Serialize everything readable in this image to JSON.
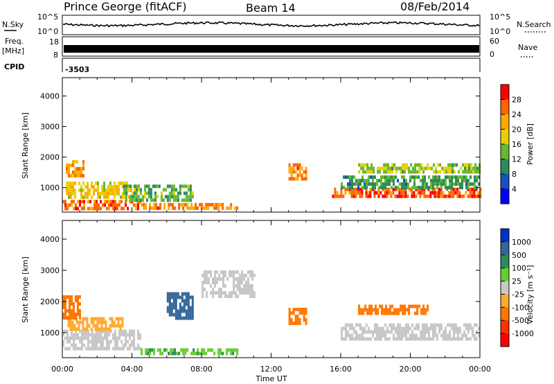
{
  "header": {
    "station": "Prince George (fitACF)",
    "beam": "Beam 14",
    "date": "08/Feb/2014"
  },
  "top_panels": {
    "nsky_label": "N.Sky",
    "nsearch_label": "N.Search",
    "nsky_ticks": [
      "10^5",
      "10^0"
    ],
    "nsearch_ticks": [
      "10^5",
      "10^0"
    ],
    "freq_label_1": "Freq.",
    "freq_label_2": "[MHz]",
    "freq_ticks": [
      "8",
      "18"
    ],
    "nave_label": "Nave",
    "nave_ticks": [
      "60",
      "0"
    ],
    "cpid_label": "CPID",
    "cpid_value": "-3503"
  },
  "axes": {
    "ylabel": "Slant Range [km]",
    "xlabel": "Time UT",
    "yticks": [
      "4000",
      "3000",
      "2000",
      "1000"
    ],
    "xticks": [
      "00:00",
      "04:00",
      "08:00",
      "12:00",
      "16:00",
      "20:00",
      "00:00"
    ]
  },
  "colorbars": {
    "power": {
      "label": "Power [dB]",
      "ticks": [
        "28",
        "24",
        "20",
        "16",
        "12",
        "8",
        "4"
      ],
      "colors": [
        "#ff0000",
        "#ff6600",
        "#ffaa00",
        "#e8d000",
        "#66b832",
        "#2e8b57",
        "#1a4fbf",
        "#0000ff"
      ]
    },
    "velocity": {
      "label": "Velocity [m s⁻¹]",
      "ticks": [
        "1000",
        "500",
        "100",
        "25",
        "-25",
        "-100",
        "-500",
        "-1000"
      ],
      "colors": [
        "#0033cc",
        "#336699",
        "#2e8b57",
        "#66cc33",
        "#c8c8c8",
        "#ffaa33",
        "#ff7700",
        "#ff3300",
        "#ff0000"
      ]
    }
  },
  "chart_data": [
    {
      "type": "heatmap",
      "title": "Power",
      "xlabel": "Time UT",
      "ylabel": "Slant Range [km]",
      "xlim": [
        0,
        24
      ],
      "ylim": [
        200,
        4600
      ],
      "colorbar_range": [
        0,
        30
      ],
      "bands": [
        {
          "t0": 0.0,
          "t1": 4.5,
          "r0": 300,
          "r1": 600,
          "v": 26
        },
        {
          "t0": 0.2,
          "t1": 4.0,
          "r0": 700,
          "r1": 1200,
          "v": 18
        },
        {
          "t0": 0.2,
          "t1": 1.2,
          "r0": 1400,
          "r1": 1900,
          "v": 22
        },
        {
          "t0": 4.5,
          "t1": 10.0,
          "r0": 300,
          "r1": 500,
          "v": 24
        },
        {
          "t0": 3.5,
          "t1": 7.5,
          "r0": 600,
          "r1": 1100,
          "v": 12
        },
        {
          "t0": 13.0,
          "t1": 14.0,
          "r0": 1300,
          "r1": 1800,
          "v": 24
        },
        {
          "t0": 15.5,
          "t1": 24.0,
          "r0": 700,
          "r1": 1000,
          "v": 27
        },
        {
          "t0": 16.0,
          "t1": 24.0,
          "r0": 1000,
          "r1": 1400,
          "v": 10
        },
        {
          "t0": 17.0,
          "t1": 24.0,
          "r0": 1500,
          "r1": 1800,
          "v": 14
        }
      ]
    },
    {
      "type": "heatmap",
      "title": "Velocity",
      "xlabel": "Time UT",
      "ylabel": "Slant Range [km]",
      "xlim": [
        0,
        24
      ],
      "ylim": [
        200,
        4600
      ],
      "colorbar_range": [
        -1000,
        1000
      ],
      "bands": [
        {
          "t0": 0.0,
          "t1": 4.5,
          "r0": 500,
          "r1": 1100,
          "v": 0
        },
        {
          "t0": 0.3,
          "t1": 3.5,
          "r0": 1100,
          "r1": 1500,
          "v": -150
        },
        {
          "t0": 0.0,
          "t1": 1.0,
          "r0": 1500,
          "r1": 2200,
          "v": -200
        },
        {
          "t0": 4.5,
          "t1": 10.0,
          "r0": 300,
          "r1": 500,
          "v": 60
        },
        {
          "t0": 6.0,
          "t1": 7.5,
          "r0": 1500,
          "r1": 2300,
          "v": 700
        },
        {
          "t0": 8.0,
          "t1": 11.0,
          "r0": 2200,
          "r1": 3000,
          "v": 0
        },
        {
          "t0": 13.0,
          "t1": 14.0,
          "r0": 1300,
          "r1": 1800,
          "v": -200
        },
        {
          "t0": 16.0,
          "t1": 24.0,
          "r0": 800,
          "r1": 1300,
          "v": 0
        },
        {
          "t0": 17.0,
          "t1": 21.0,
          "r0": 1600,
          "r1": 1900,
          "v": -300
        }
      ]
    }
  ]
}
